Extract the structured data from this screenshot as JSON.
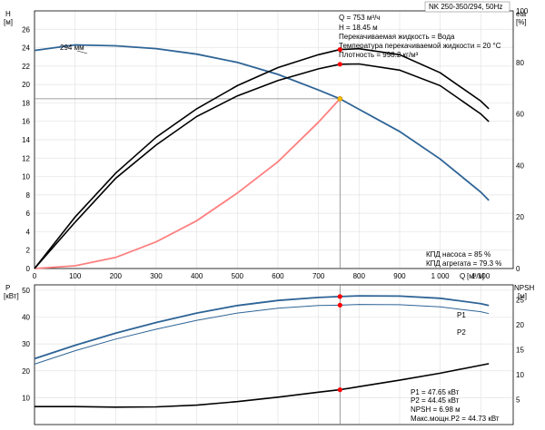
{
  "chart_data": [
    {
      "type": "line",
      "title": "NK 250-350/294, 50Hz",
      "xlabel": "Q",
      "xunit": "[м³/ч]",
      "xlim": [
        0,
        1180
      ],
      "x_ticks": [
        0,
        100,
        200,
        300,
        400,
        500,
        600,
        700,
        800,
        900,
        1000,
        1100
      ],
      "x_tick_labels": [
        "0",
        "100",
        "200",
        "300",
        "400",
        "500",
        "600",
        "700",
        "800",
        "900",
        "1 000",
        "1 100"
      ],
      "ylabel": "H",
      "yunit": "[м]",
      "ylim": [
        0,
        28
      ],
      "y_ticks": [
        0,
        2,
        4,
        6,
        8,
        10,
        12,
        14,
        16,
        18,
        20,
        22,
        24,
        26
      ],
      "y2label": "eta",
      "y2unit": "[%]",
      "y2lim": [
        0,
        100
      ],
      "y2_ticks": [
        0,
        20,
        40,
        60,
        80,
        100
      ],
      "grid": true,
      "curve_label": "294 мм",
      "series": [
        {
          "axis": "y",
          "color": "#2e6496",
          "x": [
            0,
            100,
            200,
            300,
            400,
            500,
            600,
            700,
            753,
            800,
            900,
            1000,
            1100,
            1120
          ],
          "values": [
            23.7,
            24.3,
            24.2,
            23.9,
            23.3,
            22.4,
            21.1,
            19.4,
            18.45,
            17.3,
            14.9,
            11.9,
            8.3,
            7.4
          ]
        },
        {
          "axis": "y",
          "color": "#ff8080",
          "x": [
            0,
            100,
            200,
            300,
            400,
            500,
            600,
            700,
            753
          ],
          "values": [
            0,
            0.3,
            1.2,
            2.9,
            5.2,
            8.2,
            11.6,
            15.9,
            18.45
          ]
        },
        {
          "axis": "y2",
          "color": "#000000",
          "x": [
            0,
            100,
            200,
            300,
            400,
            500,
            600,
            700,
            753,
            800,
            900,
            1000,
            1100,
            1120
          ],
          "values": [
            0,
            20,
            37,
            51,
            62,
            71,
            78,
            83,
            85,
            85.3,
            83,
            76,
            65,
            62
          ]
        },
        {
          "axis": "y2",
          "color": "#000000",
          "x": [
            0,
            100,
            200,
            300,
            400,
            500,
            600,
            700,
            753,
            800,
            900,
            1000,
            1100,
            1120
          ],
          "values": [
            0,
            18,
            35,
            48,
            59,
            67,
            73,
            77.5,
            79.3,
            79.4,
            77,
            71,
            60,
            57
          ]
        }
      ],
      "points": [
        {
          "axis": "y",
          "x": 753,
          "y": 18.45,
          "color": "#f5b800"
        },
        {
          "axis": "y2",
          "x": 753,
          "y": 85,
          "color": "#ff0000"
        },
        {
          "axis": "y2",
          "x": 753,
          "y": 79.3,
          "color": "#ff0000"
        }
      ],
      "operating_point": {
        "x": 753,
        "y": 18.45
      },
      "annotations": [
        "Q = 753 м³/ч",
        "H = 18.45 м",
        "Перекачиваемая жидкость = Вода",
        "Температура перекачиваемой жидкости = 20 °C",
        "Плотность = 998.2 кг/м³"
      ],
      "efficiency_annotations": [
        "КПД насоса = 85 %",
        "КПД агрегата = 79.3 %"
      ]
    },
    {
      "type": "line",
      "xlim": [
        0,
        1180
      ],
      "x_ticks": [
        0,
        100,
        200,
        300,
        400,
        500,
        600,
        700,
        800,
        900,
        1000,
        1100
      ],
      "ylabel": "P",
      "yunit": "[кВт]",
      "ylim": [
        0,
        52
      ],
      "y_ticks": [
        10,
        20,
        30,
        40,
        50
      ],
      "y2label": "NPSH",
      "y2unit": "[м]",
      "y2lim": [
        0,
        28
      ],
      "y2_ticks": [
        5,
        10,
        15,
        20,
        25
      ],
      "grid": true,
      "series": [
        {
          "name": "P1",
          "axis": "y",
          "color": "#2e6496",
          "x": [
            0,
            100,
            200,
            300,
            400,
            500,
            600,
            700,
            753,
            800,
            900,
            1000,
            1100,
            1120
          ],
          "values": [
            24.5,
            29.5,
            34,
            38,
            41.5,
            44.3,
            46.2,
            47.3,
            47.65,
            47.9,
            47.8,
            47,
            45,
            44.3
          ]
        },
        {
          "name": "P2",
          "axis": "y",
          "color": "#2e6496",
          "x": [
            0,
            100,
            200,
            300,
            400,
            500,
            600,
            700,
            753,
            800,
            900,
            1000,
            1100,
            1120
          ],
          "values": [
            22.5,
            27.5,
            31.8,
            35.5,
            38.8,
            41.5,
            43.3,
            44.3,
            44.45,
            44.7,
            44.6,
            43.8,
            42,
            41.3
          ]
        },
        {
          "axis": "y2",
          "color": "#000000",
          "x": [
            0,
            100,
            200,
            300,
            400,
            500,
            600,
            700,
            753,
            800,
            900,
            1000,
            1100,
            1120
          ],
          "values": [
            3.6,
            3.6,
            3.5,
            3.55,
            3.9,
            4.6,
            5.5,
            6.5,
            6.98,
            7.6,
            8.9,
            10.3,
            11.9,
            12.2
          ]
        }
      ],
      "points": [
        {
          "axis": "y",
          "x": 753,
          "y": 47.65,
          "color": "#ff0000"
        },
        {
          "axis": "y",
          "x": 753,
          "y": 44.45,
          "color": "#ff0000"
        },
        {
          "axis": "y2",
          "x": 753,
          "y": 6.98,
          "color": "#ff0000"
        }
      ],
      "annotations": [
        "P1 = 47.65 кВт",
        "P2 = 44.45 кВт",
        "NPSH = 6.98 м",
        "Макс.мощн.P2 = 44.73 кВт"
      ]
    }
  ]
}
